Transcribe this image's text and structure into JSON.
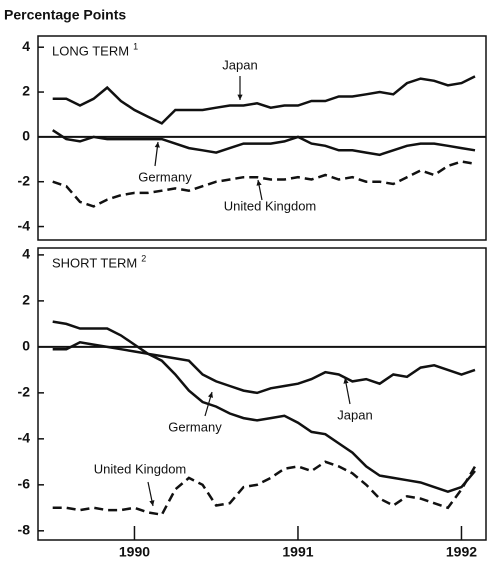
{
  "chart_data": [
    {
      "type": "line",
      "ylabel": "Percentage Points",
      "title": "LONG TERM",
      "title_note": "1",
      "x": [
        1989.5,
        1989.583,
        1989.667,
        1989.75,
        1989.833,
        1989.917,
        1990.0,
        1990.083,
        1990.167,
        1990.25,
        1990.333,
        1990.417,
        1990.5,
        1990.583,
        1990.667,
        1990.75,
        1990.833,
        1990.917,
        1991.0,
        1991.083,
        1991.167,
        1991.25,
        1991.333,
        1991.417,
        1991.5,
        1991.583,
        1991.667,
        1991.75,
        1991.833,
        1991.917,
        1992.0,
        1992.083
      ],
      "xlim": [
        1989.41,
        1992.15
      ],
      "ylim": [
        -4.6,
        4.5
      ],
      "yticks": [
        -4,
        -2,
        0,
        2,
        4
      ],
      "series": [
        {
          "name": "Japan",
          "color": "#111111",
          "style": "solid",
          "values": [
            1.7,
            1.7,
            1.4,
            1.7,
            2.2,
            1.6,
            1.2,
            0.9,
            0.6,
            1.2,
            1.2,
            1.2,
            1.3,
            1.4,
            1.4,
            1.5,
            1.3,
            1.4,
            1.4,
            1.6,
            1.6,
            1.8,
            1.8,
            1.9,
            2.0,
            1.9,
            2.4,
            2.6,
            2.5,
            2.3,
            2.4,
            2.7
          ]
        },
        {
          "name": "Germany",
          "color": "#111111",
          "style": "solid",
          "values": [
            0.3,
            -0.1,
            -0.2,
            0.0,
            -0.1,
            -0.1,
            -0.1,
            -0.1,
            -0.1,
            -0.3,
            -0.5,
            -0.6,
            -0.7,
            -0.5,
            -0.3,
            -0.3,
            -0.3,
            -0.2,
            0.0,
            -0.3,
            -0.4,
            -0.6,
            -0.6,
            -0.7,
            -0.8,
            -0.6,
            -0.4,
            -0.3,
            -0.3,
            -0.4,
            -0.5,
            -0.6
          ]
        },
        {
          "name": "United Kingdom",
          "color": "#111111",
          "style": "dashed",
          "values": [
            -2.0,
            -2.2,
            -2.9,
            -3.1,
            -2.8,
            -2.6,
            -2.5,
            -2.5,
            -2.4,
            -2.3,
            -2.4,
            -2.2,
            -2.0,
            -1.9,
            -1.8,
            -1.8,
            -1.9,
            -1.9,
            -1.8,
            -1.9,
            -1.7,
            -1.9,
            -1.8,
            -2.0,
            -2.0,
            -2.1,
            -1.8,
            -1.5,
            -1.7,
            -1.3,
            -1.1,
            -1.2
          ]
        }
      ]
    },
    {
      "type": "line",
      "title": "SHORT TERM",
      "title_note": "2",
      "x": [
        1989.5,
        1989.583,
        1989.667,
        1989.75,
        1989.833,
        1989.917,
        1990.0,
        1990.083,
        1990.167,
        1990.25,
        1990.333,
        1990.417,
        1990.5,
        1990.583,
        1990.667,
        1990.75,
        1990.833,
        1990.917,
        1991.0,
        1991.083,
        1991.167,
        1991.25,
        1991.333,
        1991.417,
        1991.5,
        1991.583,
        1991.667,
        1991.75,
        1991.833,
        1991.917,
        1992.0,
        1992.083
      ],
      "xlim": [
        1989.41,
        1992.15
      ],
      "xticks": [
        1990,
        1991,
        1992
      ],
      "ylim": [
        -8.4,
        4.3
      ],
      "yticks": [
        -8,
        -6,
        -4,
        -2,
        0,
        2,
        4
      ],
      "series": [
        {
          "name": "Japan",
          "color": "#111111",
          "style": "solid",
          "values": [
            1.1,
            1.0,
            0.8,
            0.8,
            0.8,
            0.5,
            0.1,
            -0.3,
            -0.4,
            -0.5,
            -0.6,
            -1.2,
            -1.5,
            -1.7,
            -1.9,
            -2.0,
            -1.8,
            -1.7,
            -1.6,
            -1.4,
            -1.1,
            -1.2,
            -1.5,
            -1.4,
            -1.6,
            -1.2,
            -1.3,
            -0.9,
            -0.8,
            -1.0,
            -1.2,
            -1.0
          ]
        },
        {
          "name": "Germany",
          "color": "#111111",
          "style": "solid",
          "values": [
            -0.1,
            -0.1,
            0.2,
            0.1,
            0.0,
            -0.1,
            -0.2,
            -0.3,
            -0.6,
            -1.2,
            -1.9,
            -2.4,
            -2.6,
            -2.9,
            -3.1,
            -3.2,
            -3.1,
            -3.0,
            -3.3,
            -3.7,
            -3.8,
            -4.2,
            -4.6,
            -5.2,
            -5.6,
            -5.7,
            -5.8,
            -5.9,
            -6.1,
            -6.3,
            -6.1,
            -5.4
          ]
        },
        {
          "name": "United Kingdom",
          "color": "#111111",
          "style": "dashed",
          "values": [
            -7.0,
            -7.0,
            -7.1,
            -7.0,
            -7.1,
            -7.1,
            -7.0,
            -7.2,
            -7.3,
            -6.2,
            -5.7,
            -6.0,
            -6.9,
            -6.8,
            -6.1,
            -6.0,
            -5.7,
            -5.3,
            -5.2,
            -5.4,
            -5.0,
            -5.2,
            -5.5,
            -6.0,
            -6.6,
            -6.9,
            -6.5,
            -6.6,
            -6.8,
            -7.0,
            -6.2,
            -5.2
          ]
        }
      ]
    }
  ]
}
